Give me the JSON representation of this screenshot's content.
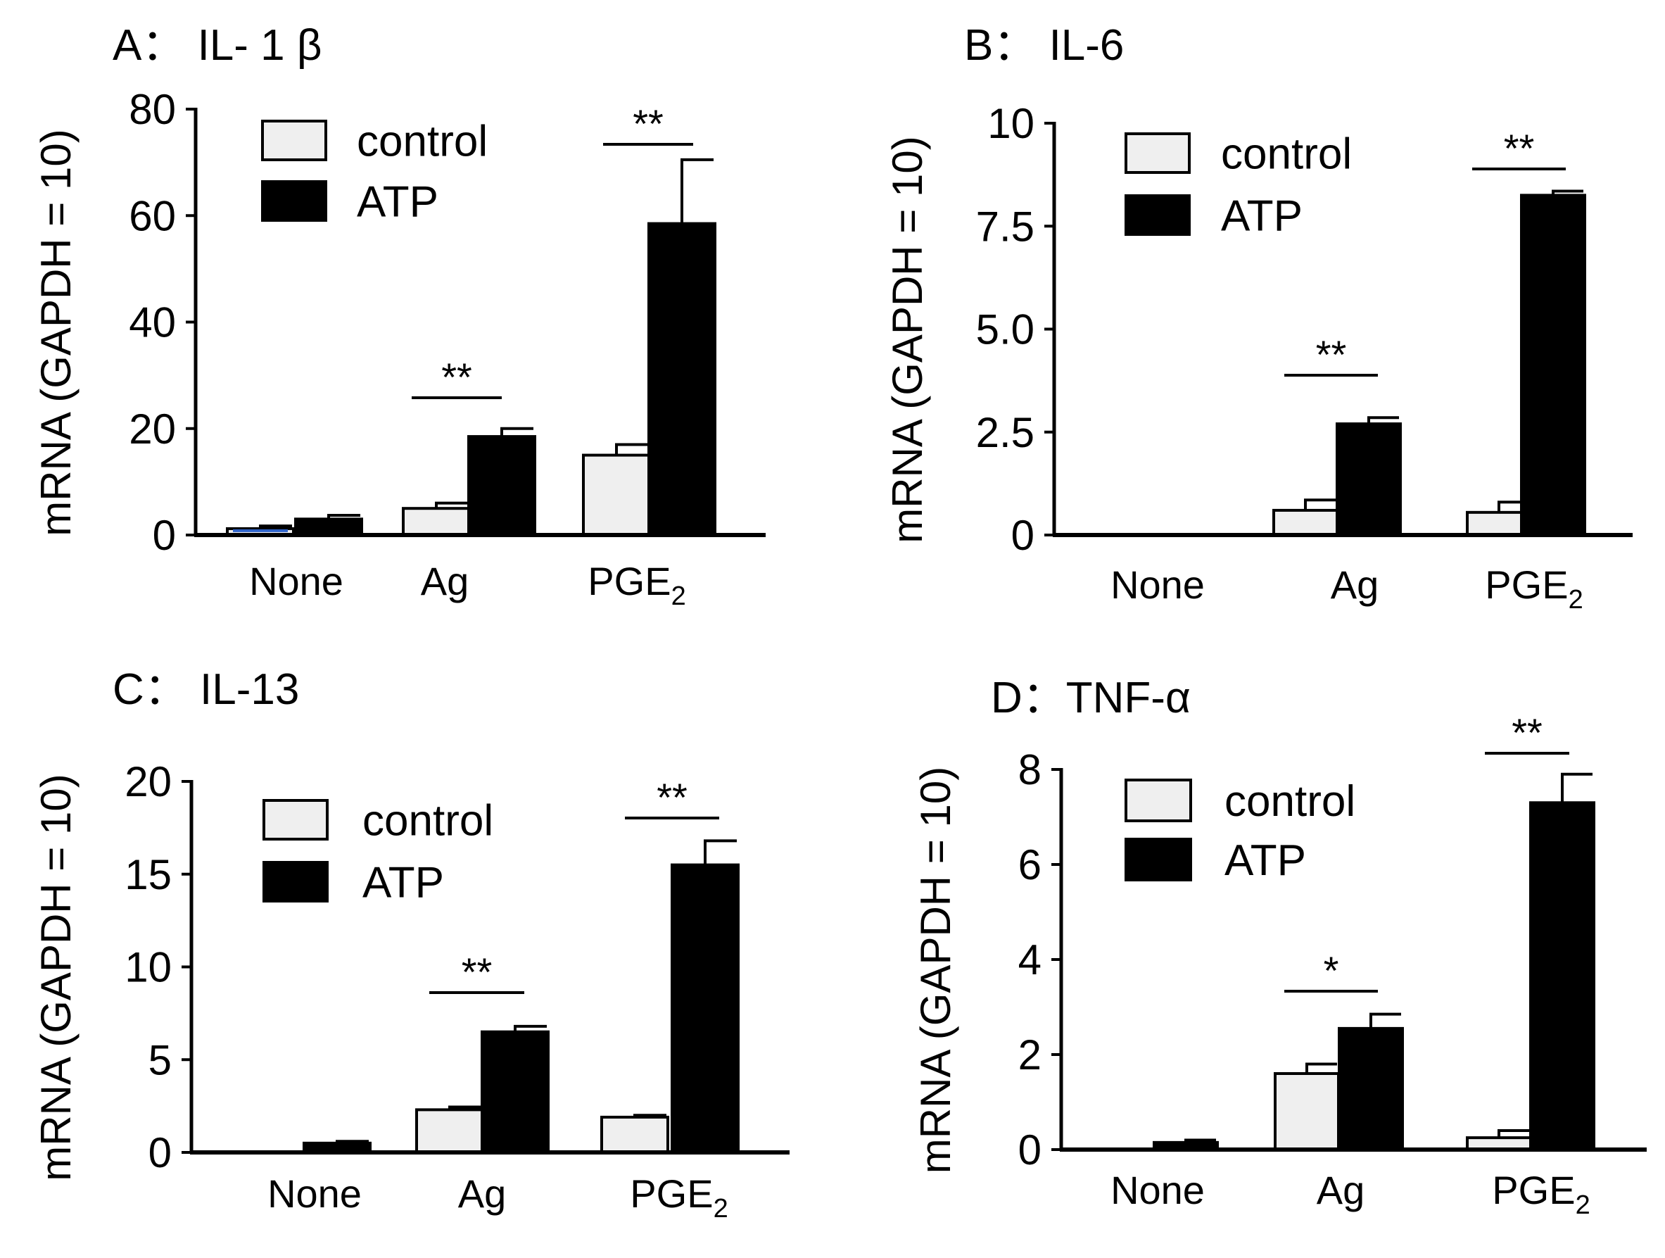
{
  "colors": {
    "control": "#efefef",
    "atp": "#000000",
    "none_control_accent": "#2e63c9"
  },
  "chart_data": [
    {
      "type": "bar",
      "panel": "A",
      "title": "A： IL- 1 β",
      "ylabel": "mRNA (GAPDH = 10)",
      "ylim": [
        0,
        80
      ],
      "yticks": [
        "0",
        "20",
        "40",
        "60",
        "80"
      ],
      "categories": [
        "None",
        "Ag",
        "PGE2"
      ],
      "category_labels": [
        {
          "main": "None",
          "sub": ""
        },
        {
          "main": "Ag",
          "sub": ""
        },
        {
          "main": "PGE",
          "sub": "2"
        }
      ],
      "series": [
        {
          "name": "control",
          "values": [
            1.2,
            5,
            15
          ],
          "errors": [
            0.5,
            1,
            2
          ]
        },
        {
          "name": "ATP",
          "values": [
            3,
            18.5,
            58.5
          ],
          "errors": [
            0.7,
            1.5,
            12
          ]
        }
      ],
      "legend": [
        "control",
        "ATP"
      ],
      "significance": [
        {
          "category": "Ag",
          "label": "**"
        },
        {
          "category": "PGE2",
          "label": "**"
        }
      ]
    },
    {
      "type": "bar",
      "panel": "B",
      "title": "B： IL-6",
      "ylabel": "mRNA (GAPDH = 10)",
      "ylim": [
        0,
        10
      ],
      "yticks": [
        "0",
        "2.5",
        "5.0",
        "7.5",
        "10"
      ],
      "categories": [
        "None",
        "Ag",
        "PGE2"
      ],
      "category_labels": [
        {
          "main": "None",
          "sub": ""
        },
        {
          "main": "Ag",
          "sub": ""
        },
        {
          "main": "PGE",
          "sub": "2"
        }
      ],
      "series": [
        {
          "name": "control",
          "values": [
            0,
            0.6,
            0.55
          ],
          "errors": [
            0,
            0.25,
            0.25
          ]
        },
        {
          "name": "ATP",
          "values": [
            0,
            2.7,
            8.25
          ],
          "errors": [
            0,
            0.15,
            0.1
          ]
        }
      ],
      "legend": [
        "control",
        "ATP"
      ],
      "significance": [
        {
          "category": "Ag",
          "label": "**"
        },
        {
          "category": "PGE2",
          "label": "**"
        }
      ]
    },
    {
      "type": "bar",
      "panel": "C",
      "title": "C： IL-13",
      "ylabel": "mRNA (GAPDH = 10)",
      "ylim": [
        0,
        20
      ],
      "yticks": [
        "0",
        "5",
        "10",
        "15",
        "20"
      ],
      "categories": [
        "None",
        "Ag",
        "PGE2"
      ],
      "category_labels": [
        {
          "main": "None",
          "sub": ""
        },
        {
          "main": "Ag",
          "sub": ""
        },
        {
          "main": "PGE",
          "sub": "2"
        }
      ],
      "series": [
        {
          "name": "control",
          "values": [
            0,
            2.3,
            1.9
          ],
          "errors": [
            0,
            0.15,
            0.1
          ]
        },
        {
          "name": "ATP",
          "values": [
            0.5,
            6.5,
            15.5
          ],
          "errors": [
            0.1,
            0.3,
            1.3
          ]
        }
      ],
      "legend": [
        "control",
        "ATP"
      ],
      "significance": [
        {
          "category": "Ag",
          "label": "**"
        },
        {
          "category": "PGE2",
          "label": "**"
        }
      ]
    },
    {
      "type": "bar",
      "panel": "D",
      "title": "D：TNF-α",
      "ylabel": "mRNA (GAPDH = 10)",
      "ylim": [
        0,
        8
      ],
      "yticks": [
        "0",
        "2",
        "4",
        "6",
        "8"
      ],
      "categories": [
        "None",
        "Ag",
        "PGE2"
      ],
      "category_labels": [
        {
          "main": "None",
          "sub": ""
        },
        {
          "main": "Ag",
          "sub": ""
        },
        {
          "main": "PGE",
          "sub": "2"
        }
      ],
      "series": [
        {
          "name": "control",
          "values": [
            0,
            1.6,
            0.25
          ],
          "errors": [
            0,
            0.2,
            0.15
          ]
        },
        {
          "name": "ATP",
          "values": [
            0.15,
            2.55,
            7.3
          ],
          "errors": [
            0.05,
            0.3,
            0.6
          ]
        }
      ],
      "legend": [
        "control",
        "ATP"
      ],
      "significance": [
        {
          "category": "Ag",
          "label": "*"
        },
        {
          "category": "PGE2",
          "label": "**"
        }
      ]
    }
  ]
}
